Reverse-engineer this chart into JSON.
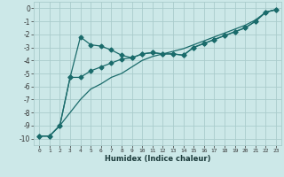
{
  "title": "",
  "xlabel": "Humidex (Indice chaleur)",
  "ylabel": "",
  "xlim": [
    -0.5,
    23.5
  ],
  "ylim": [
    -10.5,
    0.5
  ],
  "xticks": [
    0,
    1,
    2,
    3,
    4,
    5,
    6,
    7,
    8,
    9,
    10,
    11,
    12,
    13,
    14,
    15,
    16,
    17,
    18,
    19,
    20,
    21,
    22,
    23
  ],
  "yticks": [
    0,
    -1,
    -2,
    -3,
    -4,
    -5,
    -6,
    -7,
    -8,
    -9,
    -10
  ],
  "bg_color": "#cce8e8",
  "grid_color": "#aacccc",
  "line_color": "#1a6b6b",
  "line1_x": [
    0,
    1,
    2,
    3,
    4,
    5,
    6,
    7,
    8,
    9,
    10,
    11,
    12,
    13,
    14,
    15,
    16,
    17,
    18,
    19,
    20,
    21,
    22,
    23
  ],
  "line1_y": [
    -9.8,
    -9.8,
    -9.0,
    -5.3,
    -2.2,
    -2.8,
    -2.9,
    -3.2,
    -3.6,
    -3.8,
    -3.5,
    -3.4,
    -3.5,
    -3.5,
    -3.6,
    -3.0,
    -2.7,
    -2.4,
    -2.1,
    -1.8,
    -1.5,
    -1.0,
    -0.3,
    -0.1
  ],
  "line2_x": [
    0,
    1,
    2,
    3,
    4,
    5,
    6,
    7,
    8,
    9,
    10,
    11,
    12,
    13,
    14,
    15,
    16,
    17,
    18,
    19,
    20,
    21,
    22,
    23
  ],
  "line2_y": [
    -9.8,
    -9.8,
    -9.0,
    -5.3,
    -5.3,
    -4.8,
    -4.5,
    -4.2,
    -3.9,
    -3.8,
    -3.5,
    -3.4,
    -3.5,
    -3.5,
    -3.6,
    -3.0,
    -2.7,
    -2.4,
    -2.1,
    -1.8,
    -1.5,
    -1.0,
    -0.3,
    -0.1
  ],
  "line3_x": [
    0,
    1,
    2,
    3,
    4,
    5,
    6,
    7,
    8,
    9,
    10,
    11,
    12,
    13,
    14,
    15,
    16,
    17,
    18,
    19,
    20,
    21,
    22,
    23
  ],
  "line3_y": [
    -9.8,
    -9.8,
    -9.0,
    -8.0,
    -7.0,
    -6.2,
    -5.8,
    -5.3,
    -5.0,
    -4.5,
    -4.0,
    -3.7,
    -3.5,
    -3.3,
    -3.1,
    -2.8,
    -2.5,
    -2.2,
    -1.9,
    -1.6,
    -1.3,
    -0.9,
    -0.3,
    -0.1
  ],
  "marker_size": 2.5,
  "linewidth": 0.9
}
